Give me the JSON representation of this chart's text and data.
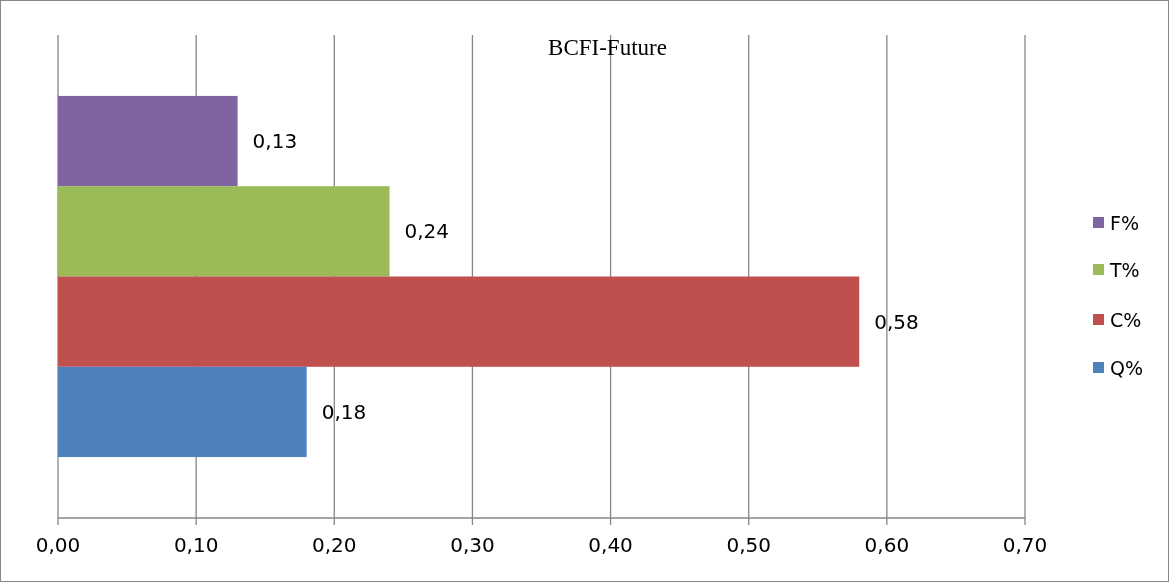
{
  "chart_data": {
    "type": "bar",
    "orientation": "horizontal",
    "title": "BCFI-Future",
    "categories": [
      null
    ],
    "series": [
      {
        "name": "F%",
        "color": "#8064a2",
        "values": [
          0.13
        ],
        "value_labels": [
          "0,13"
        ]
      },
      {
        "name": "T%",
        "color": "#9bbb59",
        "values": [
          0.24
        ],
        "value_labels": [
          "0,24"
        ]
      },
      {
        "name": "C%",
        "color": "#c0504d",
        "values": [
          0.58
        ],
        "value_labels": [
          "0,58"
        ]
      },
      {
        "name": "Q%",
        "color": "#4f81bd",
        "values": [
          0.18
        ],
        "value_labels": [
          "0,18"
        ]
      }
    ],
    "xlim": [
      0,
      0.7
    ],
    "xticks": [
      {
        "value": 0,
        "label": "0,00"
      },
      {
        "value": 0.1,
        "label": "0,10"
      },
      {
        "value": 0.2,
        "label": "0,20"
      },
      {
        "value": 0.3,
        "label": "0,30"
      },
      {
        "value": 0.4,
        "label": "0,40"
      },
      {
        "value": 0.5,
        "label": "0,50"
      },
      {
        "value": 0.6,
        "label": "0,60"
      },
      {
        "value": 0.7,
        "label": "0,70"
      }
    ],
    "grid": "x",
    "legend": "right"
  }
}
